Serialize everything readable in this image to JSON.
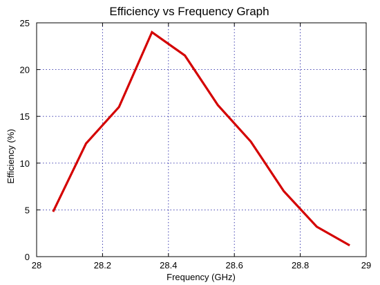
{
  "chart_data": {
    "type": "line",
    "title": "Efficiency vs Frequency Graph",
    "xlabel": "Frequency (GHz)",
    "ylabel": "Efficiency (%)",
    "xlim": [
      28,
      29
    ],
    "ylim": [
      0,
      25
    ],
    "xticks": [
      28,
      28.2,
      28.4,
      28.6,
      28.8,
      29
    ],
    "yticks": [
      0,
      5,
      10,
      15,
      20,
      25
    ],
    "grid": true,
    "line_color": "#d40000",
    "grid_color": "#2a2aa8",
    "series": [
      {
        "x": [
          28.05,
          28.15,
          28.25,
          28.35,
          28.45,
          28.55,
          28.65,
          28.75,
          28.85,
          28.95
        ],
        "y": [
          4.8,
          12.1,
          16.0,
          24.0,
          21.5,
          16.2,
          12.3,
          7.0,
          3.2,
          1.2
        ]
      }
    ]
  }
}
